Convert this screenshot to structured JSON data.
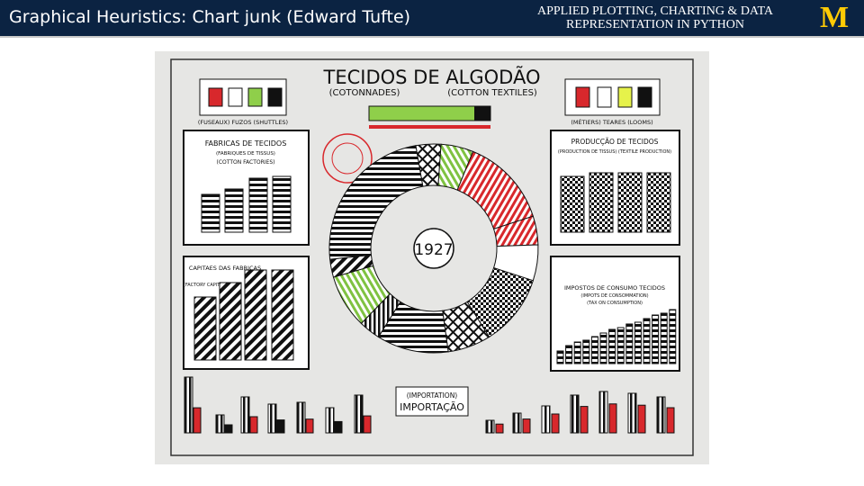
{
  "header": {
    "title": "Graphical Heuristics: Chart junk (Edward Tufte)",
    "course": "APPLIED PLOTTING, CHARTING & DATA REPRESENTATION IN PYTHON",
    "logo": "M"
  },
  "poster": {
    "title": "TECIDOS DE ALGODÃO",
    "subtitle_fr": "(COTONNADES)",
    "subtitle_en": "(COTTON TEXTILES)",
    "shuttles": "(FUSEAUX) FUZOS (SHUTTLES)",
    "looms": "(MÉTIERS) TEARES (LOOMS)",
    "factories": {
      "title": "FABRICAS DE TECIDOS",
      "fr": "(FABRIQUES DE TISSUS)",
      "en": "(COTTON FACTORIES)"
    },
    "capital": {
      "title": "CAPITAES DAS FABRICAS",
      "en": "(FACTORY CAPITAL)"
    },
    "production": {
      "title": "PRODUCÇÃO DE TECIDOS",
      "en": "(PRODUCTION DE TISSUS) (TEXTILE PRODUCTION)"
    },
    "taxes": {
      "title": "IMPOSTOS DE CONSUMO TECIDOS",
      "fr": "(IMPOTS DE CONSOMMATION)",
      "en": "(TAX ON CONSUMPTION)"
    },
    "center": "1927",
    "import_en": "(IMPORTATION)",
    "import_pt": "IMPORTAÇÃO"
  }
}
